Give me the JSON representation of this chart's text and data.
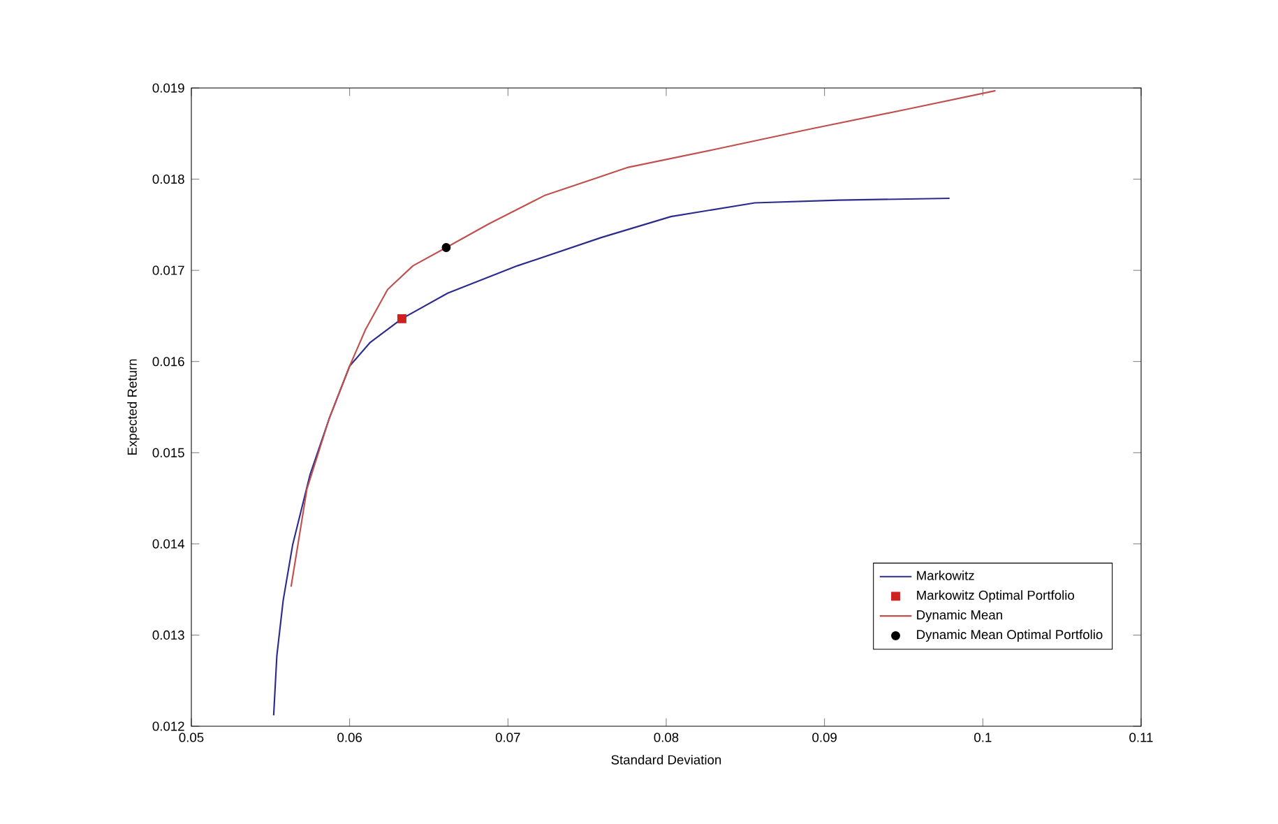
{
  "chart_data": {
    "type": "line",
    "xlabel": "Standard Deviation",
    "ylabel": "Expected Return",
    "xlim": [
      0.05,
      0.11
    ],
    "ylim": [
      0.012,
      0.019
    ],
    "xticks": [
      0.05,
      0.06,
      0.07,
      0.08,
      0.09,
      0.1,
      0.11
    ],
    "yticks": [
      0.012,
      0.013,
      0.014,
      0.015,
      0.016,
      0.017,
      0.018,
      0.019
    ],
    "grid": false,
    "legend": "bottom right",
    "series": [
      {
        "name": "Markowitz",
        "color": "#2b2b8c",
        "x": [
          0.0552,
          0.0554,
          0.0558,
          0.0564,
          0.0575,
          0.0587,
          0.06,
          0.0613,
          0.0633,
          0.0662,
          0.0706,
          0.0759,
          0.0803,
          0.0856,
          0.0909,
          0.0979
        ],
        "values": [
          0.01212,
          0.01277,
          0.01338,
          0.01399,
          0.01476,
          0.01537,
          0.01595,
          0.01621,
          0.01647,
          0.01675,
          0.01705,
          0.01736,
          0.01759,
          0.01774,
          0.01777,
          0.01779
        ]
      },
      {
        "name": "Markowitz Optimal Portfolio",
        "type": "scatter",
        "marker": "square",
        "color": "#d02020",
        "x": [
          0.0633
        ],
        "values": [
          0.01647
        ]
      },
      {
        "name": "Dynamic Mean",
        "color": "#c0504d",
        "x": [
          0.0563,
          0.0573,
          0.0587,
          0.06,
          0.061,
          0.0624,
          0.064,
          0.0661,
          0.0688,
          0.0723,
          0.0776,
          0.0829,
          0.0891,
          0.0953,
          0.1008
        ],
        "values": [
          0.01353,
          0.0146,
          0.01537,
          0.01595,
          0.01635,
          0.01679,
          0.01705,
          0.01725,
          0.01751,
          0.01782,
          0.01813,
          0.01832,
          0.01855,
          0.01877,
          0.01897
        ]
      },
      {
        "name": "Dynamic Mean Optimal Portfolio",
        "type": "scatter",
        "marker": "circle",
        "color": "#000000",
        "x": [
          0.0661
        ],
        "values": [
          0.01725
        ]
      }
    ]
  }
}
